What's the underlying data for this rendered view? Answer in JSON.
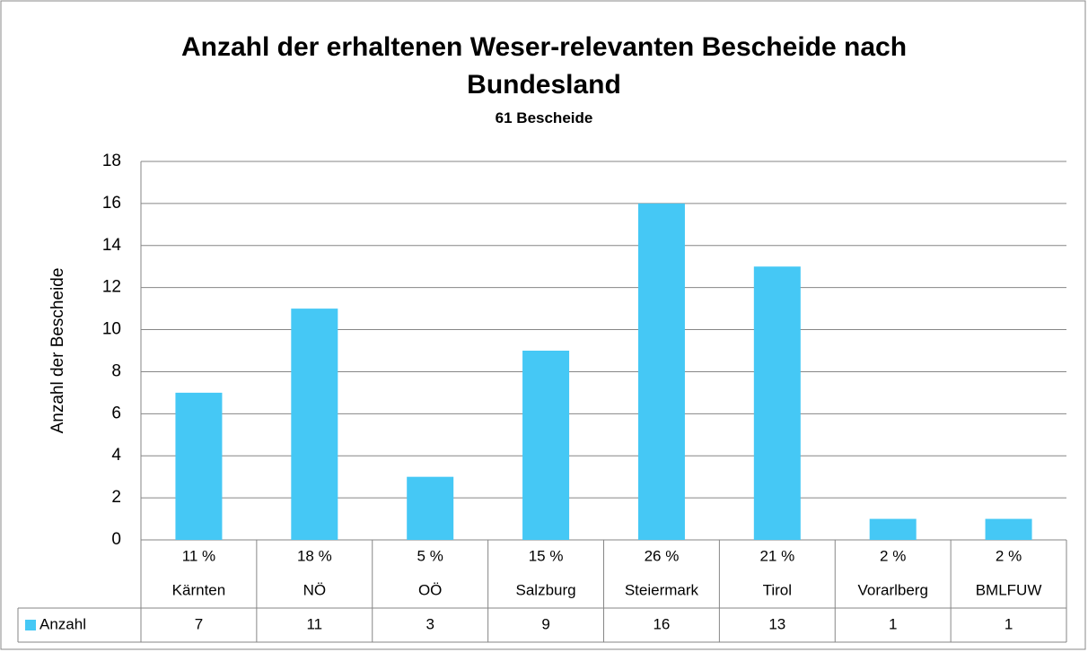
{
  "chart_data": {
    "type": "bar",
    "title": "Anzahl der erhaltenen Weser-relevanten Bescheide nach Bundesland",
    "subtitle": "61 Bescheide",
    "y_label": "Anzahl der Bescheide",
    "categories": [
      "Kärnten",
      "NÖ",
      "OÖ",
      "Salzburg",
      "Steiermark",
      "Tirol",
      "Vorarlberg",
      "BMLFUW"
    ],
    "shares": [
      "11 %",
      "18 %",
      "5 %",
      "15 %",
      "26 %",
      "21 %",
      "2 %",
      "2 %"
    ],
    "series": [
      {
        "name": "Anzahl",
        "color": "#45c8f5",
        "values": [
          7,
          11,
          3,
          9,
          16,
          13,
          1,
          1
        ]
      }
    ],
    "ylim": [
      0,
      18
    ],
    "yticks": [
      0,
      2,
      4,
      6,
      8,
      10,
      12,
      14,
      16,
      18
    ],
    "grid": true
  }
}
